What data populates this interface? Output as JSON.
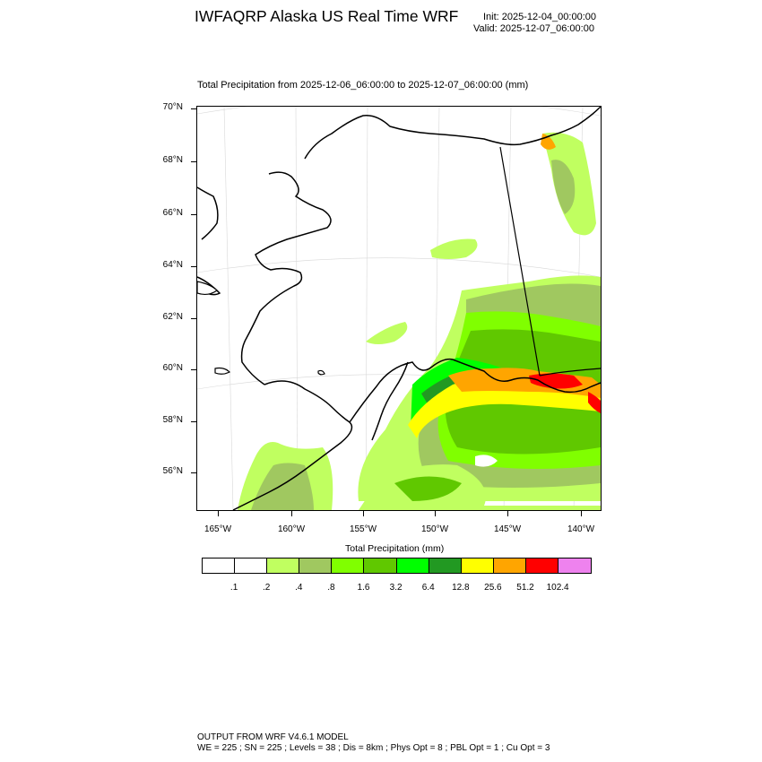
{
  "header": {
    "title": "IWFAQRP Alaska US Real Time WRF",
    "init": "Init: 2025-12-04_00:00:00",
    "valid": "Valid: 2025-12-07_06:00:00"
  },
  "plot": {
    "title": "Total Precipitation from 2025-12-06_06:00:00 to 2025-12-07_06:00:00   (mm)",
    "lat_labels": [
      "70°N",
      "68°N",
      "66°N",
      "64°N",
      "62°N",
      "60°N",
      "58°N",
      "56°N"
    ],
    "lon_labels": [
      "165°W",
      "160°W",
      "155°W",
      "150°W",
      "145°W",
      "140°W"
    ]
  },
  "colorbar": {
    "title": "Total Precipitation  (mm)",
    "colors": [
      "#ffffff",
      "#ffffff",
      "#c0ff60",
      "#a0c860",
      "#80ff00",
      "#60c800",
      "#00ff00",
      "#229922",
      "#ffff00",
      "#ffa500",
      "#ff0000",
      "#ee82ee"
    ],
    "labels": [
      ".1",
      ".2",
      ".4",
      ".8",
      "1.6",
      "3.2",
      "6.4",
      "12.8",
      "25.6",
      "51.2",
      "102.4"
    ]
  },
  "footer": {
    "line1": "OUTPUT FROM WRF V4.6.1 MODEL",
    "line2": "WE = 225 ; SN = 225 ; Levels = 38 ; Dis = 8km ; Phys Opt = 8 ; PBL Opt = 1 ; Cu Opt = 3"
  }
}
